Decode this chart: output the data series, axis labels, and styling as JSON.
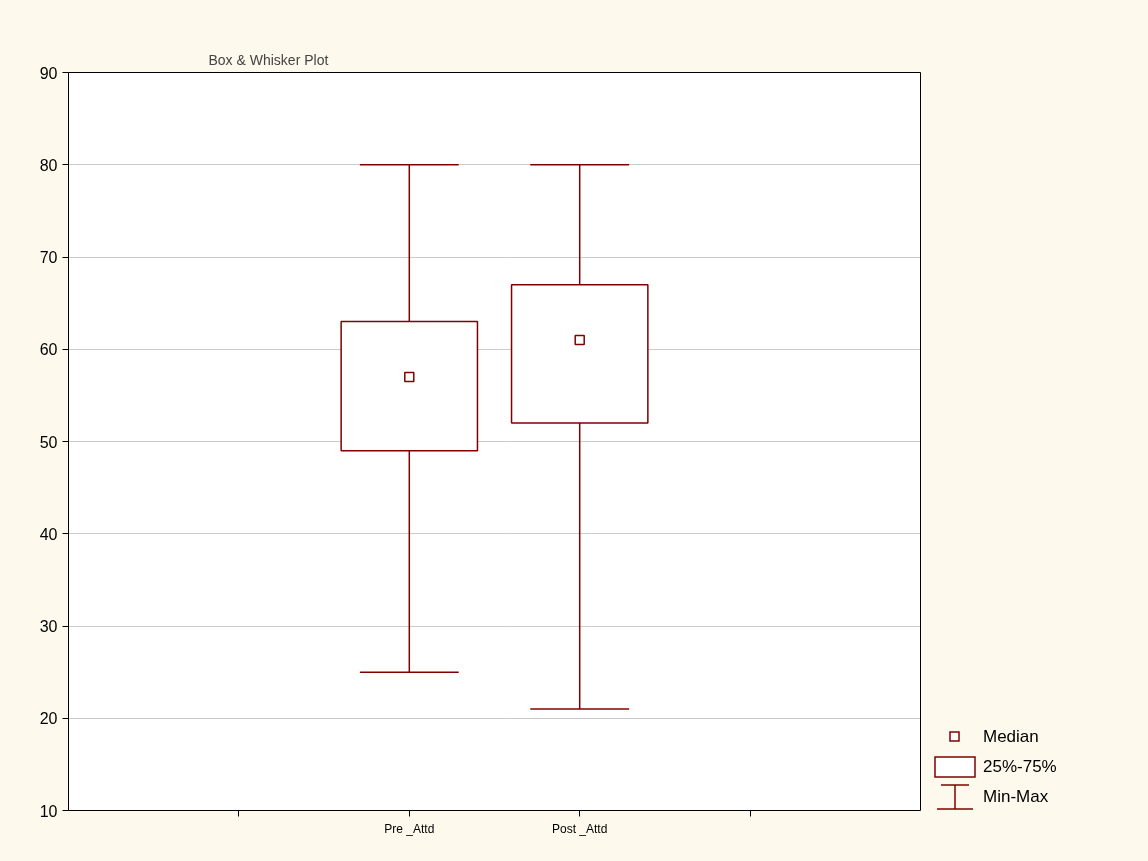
{
  "chart_data": {
    "type": "box",
    "title": "Box & Whisker Plot",
    "categories": [
      "Pre _Attd",
      "Post _Attd"
    ],
    "series": [
      {
        "color": "#800000",
        "boxes": [
          {
            "low": 25,
            "q1": 49,
            "median": 57,
            "q3": 63,
            "high": 80
          },
          {
            "low": 21,
            "q1": 52,
            "median": 61,
            "q3": 67,
            "high": 80
          }
        ]
      }
    ],
    "ylim": [
      10,
      90
    ],
    "yticks": [
      10,
      20,
      30,
      40,
      50,
      60,
      70,
      80,
      90
    ],
    "grid": "y",
    "marker": "square",
    "annotations": [
      "Median",
      "25%-75%",
      "Min-Max"
    ]
  }
}
